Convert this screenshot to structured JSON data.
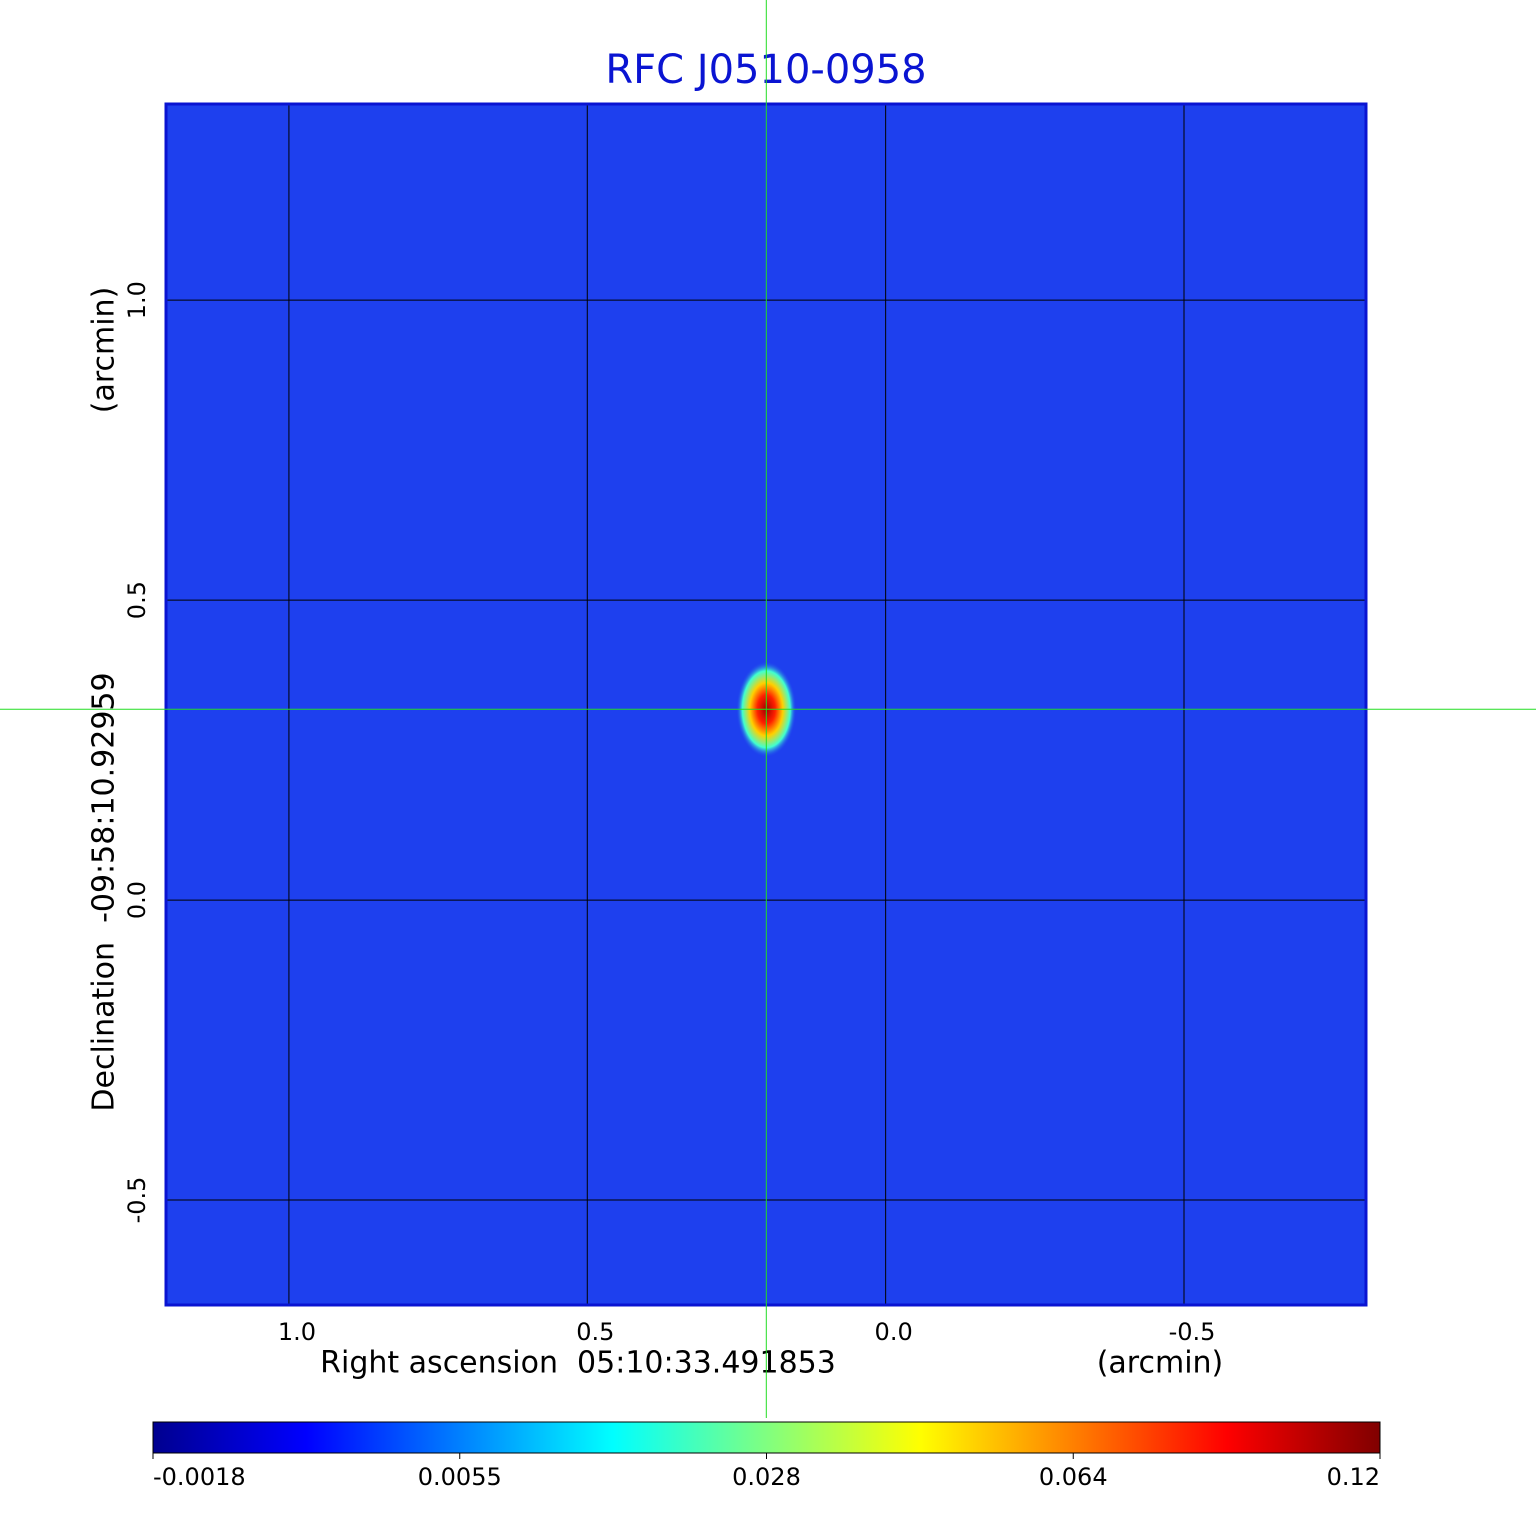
{
  "chart_data": {
    "type": "image",
    "title": "RFC J0510-0958",
    "x_label": "Right ascension  05:10:33.491853",
    "x_unit": "(arcmin)",
    "y_label": "Declination  -09:58:10.92959",
    "y_unit": "(arcmin)",
    "xlim": [
      1.206,
      -0.805
    ],
    "ylim": [
      -0.675,
      1.327
    ],
    "xticks": [
      {
        "value": 1,
        "label": "1.0"
      },
      0.5,
      {
        "value": 0,
        "label": "0.0"
      },
      -0.5
    ],
    "yticks": [
      -0.5,
      {
        "value": 0,
        "label": "0.0"
      },
      0.5,
      {
        "value": 1,
        "label": "1.0"
      }
    ],
    "grid": true,
    "crosshair": {
      "x": 0.2,
      "y": 0.318
    },
    "colorbar": {
      "ticks": [
        -0.0018,
        0.0055,
        0.028,
        0.064,
        0.12
      ],
      "colormap": [
        "#00008f",
        "#0000ff",
        "#0080ff",
        "#00ffff",
        "#80ff80",
        "#ffff00",
        "#ff8000",
        "#ff0000",
        "#800000"
      ]
    },
    "background_color": "#1e40ee"
  }
}
